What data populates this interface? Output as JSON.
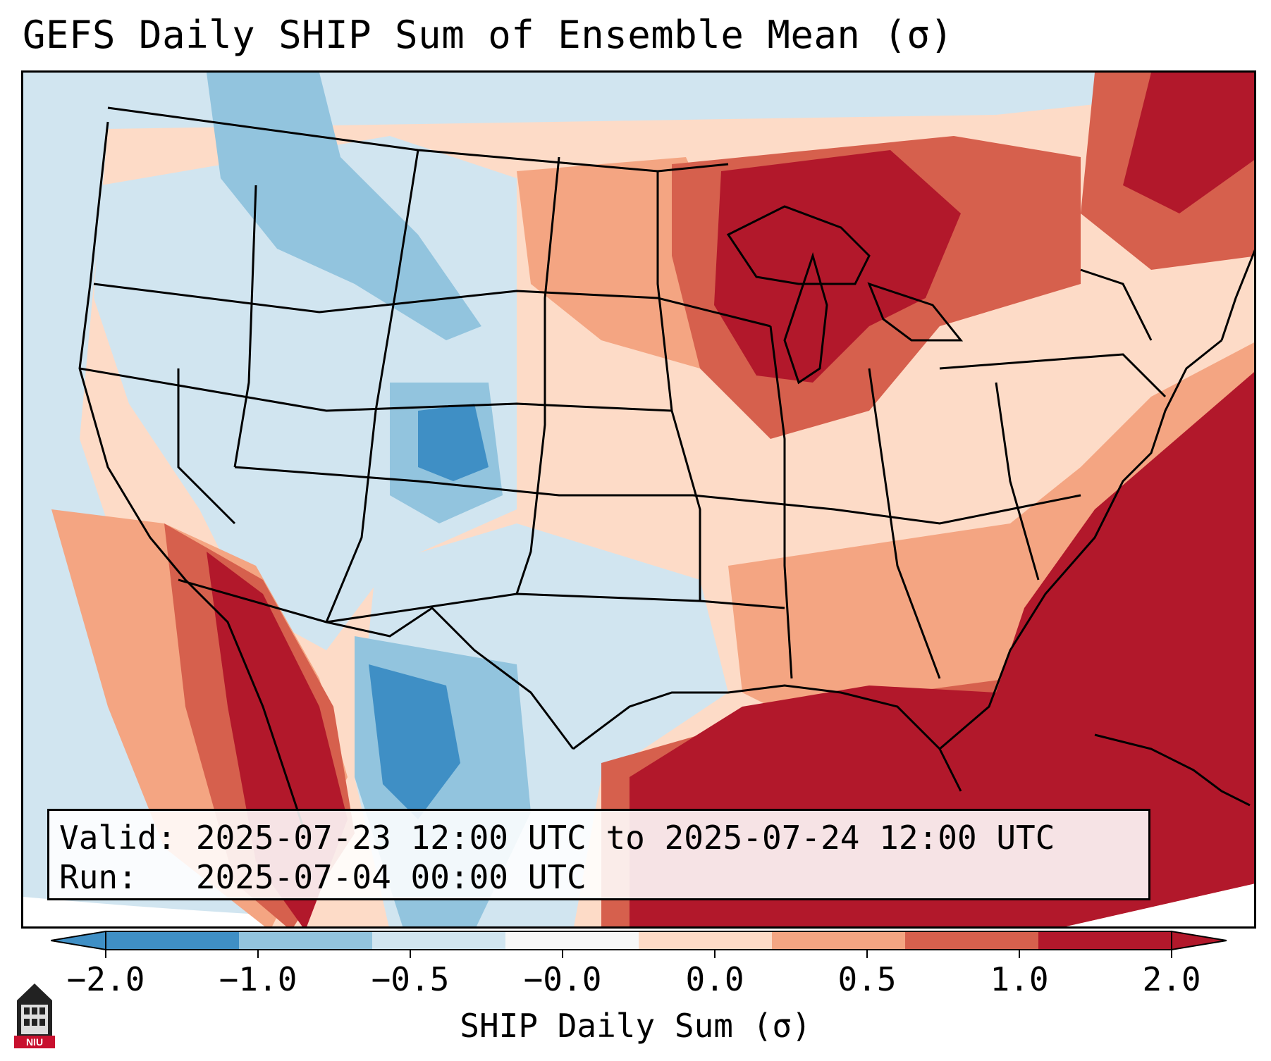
{
  "title": "GEFS Daily SHIP Sum of Ensemble Mean (σ)",
  "info": {
    "valid_label": "Valid:",
    "valid_value": "2025-07-23 12:00 UTC to 2025-07-24 12:00 UTC",
    "run_label": "Run:",
    "run_value": "2025-07-04 00:00 UTC"
  },
  "colorbar": {
    "label": "SHIP Daily Sum (σ)",
    "ticks": [
      "−2.0",
      "−1.0",
      "−0.5",
      "−0.0",
      "0.0",
      "0.5",
      "1.0",
      "2.0"
    ],
    "colors": [
      "#3f8fc5",
      "#92c4de",
      "#d1e5f0",
      "#f7f7f7",
      "#fddbc7",
      "#f4a582",
      "#d6604d",
      "#b2182b"
    ],
    "extend": "both"
  },
  "logo": {
    "text": "NIU",
    "icon": "university-building-icon"
  },
  "map": {
    "region": "Contiguous United States",
    "palette": {
      "water": "#ffffff",
      "lines": "#000000"
    }
  }
}
